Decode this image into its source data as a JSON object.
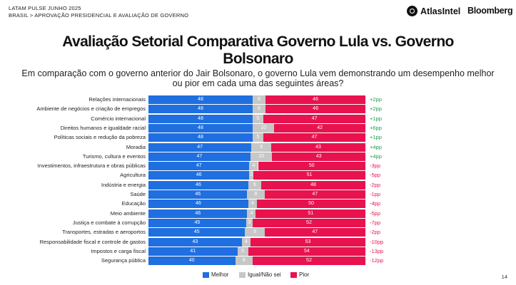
{
  "header": {
    "line1": "LATAM PULSE JUNHO 2025",
    "line2": "BRASIL > APROVAÇÃO PRESIDENCIAL E AVALIAÇÃO DE GOVERNO",
    "brand1": "AtlasIntel",
    "brand2": "Bloomberg"
  },
  "page_number": "14",
  "colors": {
    "melhor": "#1f6fe0",
    "igual": "#c7c7c7",
    "pior": "#e8124f",
    "positive_delta": "#1a9e4b",
    "negative_delta": "#e8124f"
  },
  "chart_data": {
    "type": "bar",
    "stacked": true,
    "orientation": "horizontal",
    "normalized_100": true,
    "title": "Avaliação Setorial Comparativa Governo Lula vs. Governo Bolsonaro",
    "subtitle": "Em comparação com o governo anterior do Jair Bolsonaro, o governo Lula vem demonstrando um desempenho melhor ou pior em cada uma das seguintes áreas?",
    "categories": [
      "Relações internacionais",
      "Ambiente de negócios e criação de empregos",
      "Comércio internacional",
      "Direitos humanos e igualdade racial",
      "Políticas sociais e redução da pobreza",
      "Moradia",
      "Turismo, cultura e eventos",
      "Investimentos, infraestrutura e obras públicas",
      "Agricultura",
      "Indústria e energia",
      "Saúde",
      "Educação",
      "Meio ambiente",
      "Justiça e combate à corrupção",
      "Transportes, estradas e aeroportos",
      "Responsabilidade fiscal e controle de gastos",
      "Impostos e carga fiscal",
      "Segurança pública"
    ],
    "series": [
      {
        "name": "Melhor",
        "values": [
          48,
          48,
          48,
          48,
          48,
          47,
          47,
          47,
          46,
          46,
          46,
          46,
          46,
          45,
          45,
          43,
          41,
          40
        ]
      },
      {
        "name": "Igual/Não sei",
        "values": [
          6,
          6,
          5,
          10,
          5,
          9,
          10,
          4,
          2,
          6,
          8,
          4,
          4,
          3,
          9,
          4,
          5,
          8
        ]
      },
      {
        "name": "Pior",
        "values": [
          46,
          46,
          47,
          42,
          47,
          43,
          43,
          50,
          51,
          48,
          47,
          50,
          51,
          52,
          47,
          53,
          54,
          52
        ]
      }
    ],
    "deltas": [
      "+2pp",
      "+2pp",
      "+1pp",
      "+6pp",
      "+1pp",
      "+4pp",
      "+4pp",
      "-3pp",
      "-5pp",
      "-2pp",
      "-1pp",
      "-4pp",
      "-5pp",
      "-7pp",
      "-2pp",
      "-10pp",
      "-13pp",
      "-12pp"
    ],
    "legend": [
      "Melhor",
      "Igual/Não sei",
      "Pior"
    ],
    "legend_position": "bottom"
  }
}
